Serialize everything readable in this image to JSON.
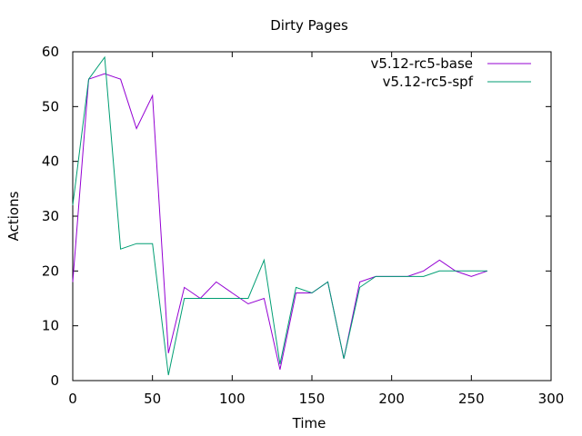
{
  "chart_data": {
    "type": "line",
    "title": "Dirty Pages",
    "xlabel": "Time",
    "ylabel": "Actions",
    "xlim": [
      0,
      300
    ],
    "ylim": [
      0,
      60
    ],
    "xticks": [
      0,
      50,
      100,
      150,
      200,
      250,
      300
    ],
    "yticks": [
      0,
      10,
      20,
      30,
      40,
      50,
      60
    ],
    "grid": false,
    "legend_position": "top-right",
    "series": [
      {
        "name": "v5.12-rc5-base",
        "color": "#9400d3",
        "x": [
          0,
          10,
          20,
          30,
          40,
          50,
          60,
          70,
          80,
          90,
          100,
          110,
          120,
          130,
          140,
          150,
          160,
          170,
          180,
          190,
          200,
          210,
          220,
          230,
          240,
          250,
          260
        ],
        "y": [
          18,
          55,
          56,
          55,
          46,
          52,
          5,
          17,
          15,
          18,
          16,
          14,
          15,
          2,
          16,
          16,
          18,
          4,
          18,
          19,
          19,
          19,
          20,
          22,
          20,
          19,
          20
        ]
      },
      {
        "name": "v5.12-rc5-spf",
        "color": "#009e73",
        "x": [
          0,
          10,
          20,
          30,
          40,
          50,
          60,
          70,
          80,
          90,
          100,
          110,
          120,
          130,
          140,
          150,
          160,
          170,
          180,
          190,
          200,
          210,
          220,
          230,
          240,
          250,
          260
        ],
        "y": [
          32,
          55,
          59,
          24,
          25,
          25,
          1,
          15,
          15,
          15,
          15,
          15,
          22,
          3,
          17,
          16,
          18,
          4,
          17,
          19,
          19,
          19,
          19,
          20,
          20,
          20,
          20
        ]
      }
    ]
  }
}
